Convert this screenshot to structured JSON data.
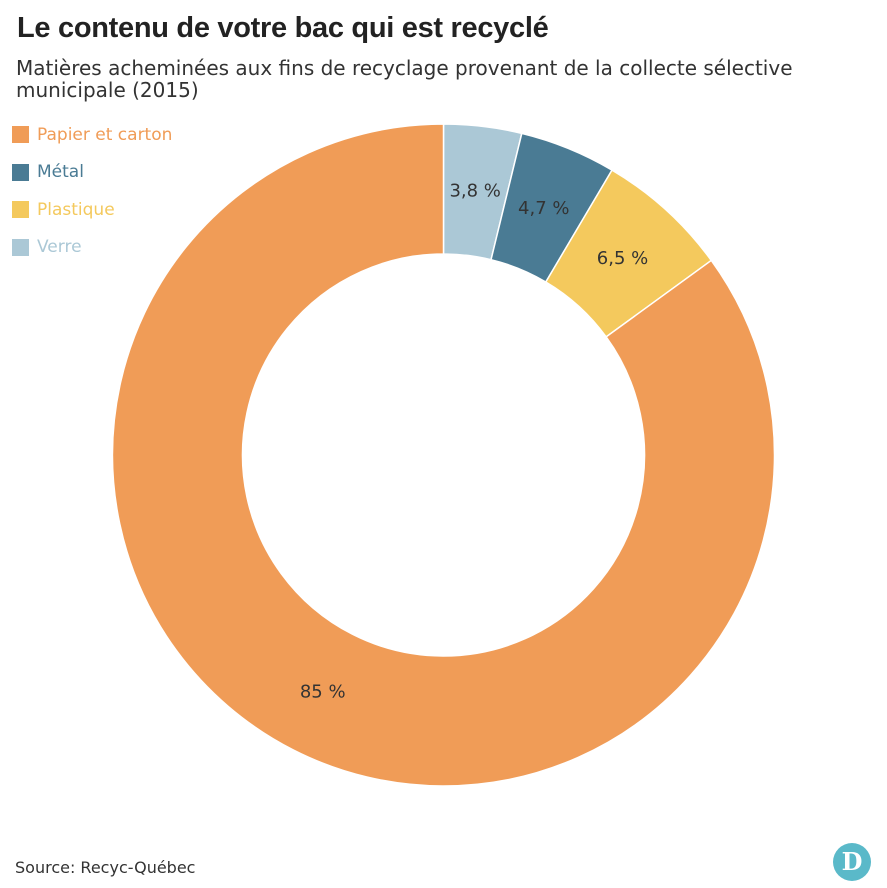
{
  "title": "Le contenu de votre bac qui est recyclé",
  "subtitle": "Matières acheminées aux fins de recyclage provenant de la collecte sélective municipale (2015)",
  "source": "Source: Recyc-Québec",
  "logo": {
    "letter": "D",
    "color": "#5ab9c9"
  },
  "chart_data": {
    "type": "pie",
    "subtype": "donut",
    "title": "Le contenu de votre bac qui est recyclé",
    "subtitle": "Matières acheminées aux fins de recyclage provenant de la collecte sélective municipale (2015)",
    "legend_position": "top-left",
    "slices": [
      {
        "name": "Verre",
        "value": 3.8,
        "label": "3,8 %",
        "color": "#abc8d6"
      },
      {
        "name": "Métal",
        "value": 4.7,
        "label": "4,7 %",
        "color": "#4a7b94"
      },
      {
        "name": "Plastique",
        "value": 6.5,
        "label": "6,5 %",
        "color": "#f4c95d"
      },
      {
        "name": "Papier et carton",
        "value": 85,
        "label": "85 %",
        "color": "#f09c57"
      }
    ],
    "legend": [
      {
        "name": "Papier et carton",
        "color": "#f09c57"
      },
      {
        "name": "Métal",
        "color": "#4a7b94"
      },
      {
        "name": "Plastique",
        "color": "#f4c95d"
      },
      {
        "name": "Verre",
        "color": "#abc8d6"
      }
    ]
  }
}
